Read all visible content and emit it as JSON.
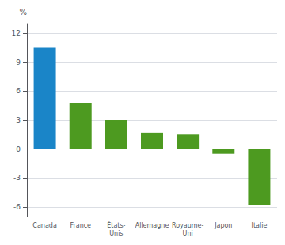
{
  "chart_data": {
    "type": "bar",
    "ylabel": "%",
    "categories": [
      "Canada",
      "France",
      "États-\nUnis",
      "Allemagne",
      "Royaume-\nUni",
      "Japon",
      "Italie"
    ],
    "values": [
      10.5,
      4.8,
      3.0,
      1.7,
      1.5,
      -0.5,
      -5.8
    ],
    "colors": [
      "#1a85c8",
      "#4d9a20",
      "#4d9a20",
      "#4d9a20",
      "#4d9a20",
      "#4d9a20",
      "#4d9a20"
    ],
    "ylim": [
      -7,
      13
    ],
    "yticks": [
      -6,
      -3,
      0,
      3,
      6,
      9,
      12
    ],
    "grid": true
  }
}
